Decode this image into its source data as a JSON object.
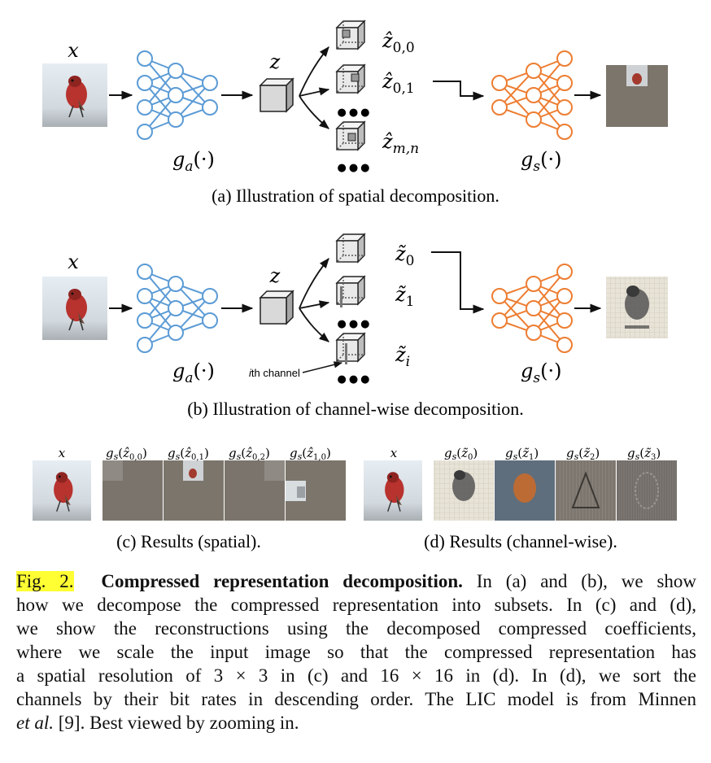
{
  "math": {
    "x": "x",
    "z": "z",
    "ga": "g",
    "ga_sub": "a",
    "gs": "g",
    "gs_sub": "s",
    "arg": "(·)",
    "z00": "ẑ",
    "z00_sub": "0,0",
    "z01_sub": "0,1",
    "zmn_sub": "m,n",
    "zt": "z̃",
    "zt0_sub": "0",
    "zt1_sub": "1",
    "zti_sub": "i",
    "dots": "●●●"
  },
  "panel_a": {
    "caption": "(a) Illustration of spatial decomposition."
  },
  "panel_b": {
    "caption": "(b) Illustration of channel-wise decomposition.",
    "ith_italic": "i",
    "ith_rest": "th channel"
  },
  "panel_c": {
    "caption": "(c) Results (spatial).",
    "labels": [
      "x",
      "g",
      "g",
      "g",
      "g"
    ],
    "subs": [
      "0,0",
      "0,1",
      "0,2",
      "1,0"
    ]
  },
  "panel_d": {
    "caption": "(d) Results (channel-wise).",
    "subs": [
      "0",
      "1",
      "2",
      "3"
    ]
  },
  "caption": {
    "fig_label": "Fig. 2.",
    "title": "Compressed representation decomposition.",
    "l1_rest": " In (a) and (b), we show",
    "l2": "how we decompose the compressed representation into subsets. In (c) and (d),",
    "l3": "we show the reconstructions using the decomposed compressed coefficients,",
    "l4": "where we scale the input image so that the compressed representation has",
    "l5": "a spatial resolution of 3 × 3 in (c) and 16 × 16 in (d). In (d), we sort the",
    "l6": "channels by their bit rates in descending order. The LIC model is from Minnen",
    "l7_it": "et al.",
    "l7_rest": " [9]. Best viewed by zooming in."
  },
  "colors": {
    "encoder": "#5b9bd5",
    "decoder": "#ed7d31",
    "cube": "#d9d9d9"
  }
}
